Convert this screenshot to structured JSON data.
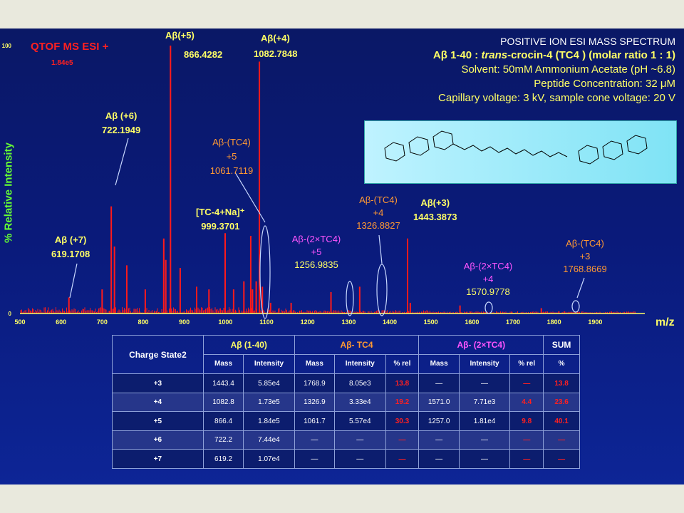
{
  "colors": {
    "peak": "#ff1a1a",
    "yellow_label": "#ffff66",
    "orange_label": "#ff9933",
    "magenta_label": "#ff55ff",
    "axis_text": "#ffff66"
  },
  "instrument": {
    "label": "QTOF MS ESI +",
    "intensity": "1.84e5"
  },
  "info": {
    "line1": "POSITIVE ION ESI MASS SPECTRUM",
    "line2_prefix": "Aβ 1-40 : ",
    "line2_italic": "trans",
    "line2_suffix": "-crocin-4 (TC4 ) (molar ratio 1 : 1)",
    "line3": "Solvent: 50mM Ammonium Acetate (pH ~6.8)",
    "line4": "Peptide Concentration: 32 μM",
    "line5": "Capillary voltage: 3 kV, sample cone voltage: 20 V"
  },
  "structure_image": {
    "description_icon": "crocin-molecule-icon"
  },
  "chart_data": {
    "type": "line",
    "xlabel": "m/z",
    "ylabel": "% Relative Intensity",
    "xlim": [
      500,
      2000
    ],
    "ylim": [
      0,
      100
    ],
    "x_ticks": [
      500,
      600,
      700,
      800,
      900,
      1000,
      1100,
      1200,
      1300,
      1400,
      1500,
      1600,
      1700,
      1800,
      1900
    ],
    "y_ticks": [
      {
        "value": 0,
        "label": "0"
      },
      {
        "value": 100,
        "label": "100"
      }
    ],
    "peaks": [
      {
        "mz": 619.2,
        "intensity": 6
      },
      {
        "mz": 700,
        "intensity": 9
      },
      {
        "mz": 722.2,
        "intensity": 40
      },
      {
        "mz": 730,
        "intensity": 25
      },
      {
        "mz": 760,
        "intensity": 18
      },
      {
        "mz": 805,
        "intensity": 9
      },
      {
        "mz": 850,
        "intensity": 28
      },
      {
        "mz": 855,
        "intensity": 20
      },
      {
        "mz": 866.4,
        "intensity": 100
      },
      {
        "mz": 890,
        "intensity": 17
      },
      {
        "mz": 930,
        "intensity": 10
      },
      {
        "mz": 960,
        "intensity": 9
      },
      {
        "mz": 999.4,
        "intensity": 30
      },
      {
        "mz": 1020,
        "intensity": 9
      },
      {
        "mz": 1045,
        "intensity": 12
      },
      {
        "mz": 1061.7,
        "intensity": 29
      },
      {
        "mz": 1066,
        "intensity": 9
      },
      {
        "mz": 1075,
        "intensity": 12
      },
      {
        "mz": 1082.8,
        "intensity": 94
      },
      {
        "mz": 1090,
        "intensity": 10
      },
      {
        "mz": 1110,
        "intensity": 4
      },
      {
        "mz": 1160,
        "intensity": 4
      },
      {
        "mz": 1257.0,
        "intensity": 8
      },
      {
        "mz": 1326.9,
        "intensity": 10
      },
      {
        "mz": 1443.4,
        "intensity": 28
      },
      {
        "mz": 1450,
        "intensity": 4
      },
      {
        "mz": 1571.0,
        "intensity": 3
      },
      {
        "mz": 1768.9,
        "intensity": 2
      }
    ],
    "annotations": [
      {
        "mz": 619.2,
        "name": "Aβ (+7)",
        "value": "619.1708",
        "color": "yellow"
      },
      {
        "mz": 722.2,
        "name": "Aβ (+6)",
        "value": "722.1949",
        "color": "yellow"
      },
      {
        "mz": 866.4,
        "name": "Aβ(+5)",
        "value": "866.4282",
        "color": "yellow"
      },
      {
        "mz": 1082.8,
        "name": "Aβ(+4)",
        "value": "1082.7848",
        "color": "yellow"
      },
      {
        "mz": 1443.4,
        "name": "Aβ(+3)",
        "value": "1443.3873",
        "color": "yellow"
      },
      {
        "mz": 999.4,
        "name": "[TC-4+Na]⁺",
        "value": "999.3701",
        "color": "yellow"
      },
      {
        "mz": 1061.7,
        "name": "Aβ-(TC4) +5",
        "value": "1061.7119",
        "color": "orange"
      },
      {
        "mz": 1326.9,
        "name": "Aβ-(TC4) +4",
        "value": "1326.8827",
        "color": "orange"
      },
      {
        "mz": 1768.9,
        "name": "Aβ-(TC4) +3",
        "value": "1768.8669",
        "color": "orange"
      },
      {
        "mz": 1257.0,
        "name": "Aβ-(2×TC4) +5",
        "value": "1256.9835",
        "color": "magenta"
      },
      {
        "mz": 1571.0,
        "name": "Aβ-(2×TC4) +4",
        "value": "1570.9778",
        "color": "magenta"
      }
    ]
  },
  "labels": {
    "ab7_name": "Aβ (+7)",
    "ab7_val": "619.1708",
    "ab6_name": "Aβ (+6)",
    "ab6_val": "722.1949",
    "ab5_name": "Aβ(+5)",
    "ab5_val": "866.4282",
    "ab4_name": "Aβ(+4)",
    "ab4_val": "1082.7848",
    "ab3_name": "Aβ(+3)",
    "ab3_val": "1443.3873",
    "tcna_name": "[TC-4+Na]⁺",
    "tcna_val": "999.3701",
    "tc5_a": "Aβ-(TC4)",
    "tc5_b": "+5",
    "tc5_val": "1061.7119",
    "tc4_a": "Aβ-(TC4)",
    "tc4_b": "+4",
    "tc4_val": "1326.8827",
    "tc3_a": "Aβ-(TC4)",
    "tc3_b": "+3",
    "tc3_val": "1768.8669",
    "d5_a": "Aβ-(2×TC4)",
    "d5_b": "+5",
    "d5_val": "1256.9835",
    "d4_a": "Aβ-(2×TC4)",
    "d4_b": "+4",
    "d4_val": "1570.9778"
  },
  "table": {
    "headers": {
      "charge": "Charge State2",
      "ab": "Aβ (1-40)",
      "tc": "Aβ- TC4",
      "two_tc": "Aβ- (2×TC4)",
      "sum": "SUM"
    },
    "subheaders": {
      "mass": "Mass",
      "intensity": "Intensity",
      "rel": "% rel",
      "pct": "%"
    },
    "rows": [
      {
        "charge": "+3",
        "ab_mass": "1443.4",
        "ab_int": "5.85e4",
        "tc_mass": "1768.9",
        "tc_int": "8.05e3",
        "tc_rel": "13.8",
        "d_mass": "—",
        "d_int": "—",
        "d_rel": "—",
        "sum": "13.8"
      },
      {
        "charge": "+4",
        "ab_mass": "1082.8",
        "ab_int": "1.73e5",
        "tc_mass": "1326.9",
        "tc_int": "3.33e4",
        "tc_rel": "19.2",
        "d_mass": "1571.0",
        "d_int": "7.71e3",
        "d_rel": "4.4",
        "sum": "23.6"
      },
      {
        "charge": "+5",
        "ab_mass": "866.4",
        "ab_int": "1.84e5",
        "tc_mass": "1061.7",
        "tc_int": "5.57e4",
        "tc_rel": "30.3",
        "d_mass": "1257.0",
        "d_int": "1.81e4",
        "d_rel": "9.8",
        "sum": "40.1"
      },
      {
        "charge": "+6",
        "ab_mass": "722.2",
        "ab_int": "7.44e4",
        "tc_mass": "—",
        "tc_int": "—",
        "tc_rel": "—",
        "d_mass": "—",
        "d_int": "—",
        "d_rel": "—",
        "sum": "—"
      },
      {
        "charge": "+7",
        "ab_mass": "619.2",
        "ab_int": "1.07e4",
        "tc_mass": "—",
        "tc_int": "—",
        "tc_rel": "—",
        "d_mass": "—",
        "d_int": "—",
        "d_rel": "—",
        "sum": "—"
      }
    ]
  }
}
